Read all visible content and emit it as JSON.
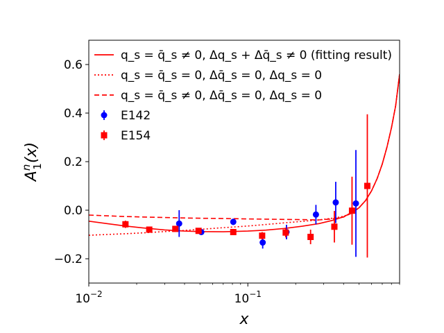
{
  "chart_data": {
    "type": "scatter",
    "title": "",
    "xlabel": "x",
    "ylabel": "A_1^n(x)",
    "xscale": "log",
    "xlim": [
      0.01,
      0.9
    ],
    "ylim": [
      -0.3,
      0.7
    ],
    "grid": false,
    "legend_position": "upper-left",
    "x_ticks": [
      {
        "value": 0.01,
        "base": "10",
        "exp": "−2"
      },
      {
        "value": 0.1,
        "base": "10",
        "exp": "−1"
      }
    ],
    "y_ticks": [
      {
        "value": -0.2,
        "label": "−0.2"
      },
      {
        "value": 0.0,
        "label": "0.0"
      },
      {
        "value": 0.2,
        "label": "0.2"
      },
      {
        "value": 0.4,
        "label": "0.4"
      },
      {
        "value": 0.6,
        "label": "0.6"
      }
    ],
    "curves": [
      {
        "name": "fitting-result",
        "label": "q_s = q̄_s ≠ 0, Δq_s + Δq̄_s ≠ 0 (fitting result)",
        "style": "solid",
        "x": [
          0.01,
          0.013,
          0.017,
          0.022,
          0.03,
          0.04,
          0.05,
          0.07,
          0.1,
          0.13,
          0.17,
          0.22,
          0.28,
          0.34,
          0.4,
          0.45,
          0.5,
          0.55,
          0.6,
          0.65,
          0.7,
          0.75,
          0.8,
          0.85,
          0.9
        ],
        "y": [
          -0.045,
          -0.055,
          -0.065,
          -0.073,
          -0.081,
          -0.086,
          -0.088,
          -0.089,
          -0.086,
          -0.082,
          -0.075,
          -0.066,
          -0.055,
          -0.042,
          -0.027,
          -0.01,
          0.01,
          0.04,
          0.08,
          0.13,
          0.19,
          0.26,
          0.34,
          0.43,
          0.56
        ]
      },
      {
        "name": "zero-strange",
        "label": "q_s = q̄_s = 0, Δq̄_s = 0, Δq_s = 0",
        "style": "dotted",
        "x": [
          0.01,
          0.013,
          0.017,
          0.022,
          0.03,
          0.04,
          0.05,
          0.07,
          0.1,
          0.13,
          0.17,
          0.22,
          0.28,
          0.34,
          0.4,
          0.45,
          0.5,
          0.55,
          0.6,
          0.65,
          0.7,
          0.75,
          0.8,
          0.85,
          0.9
        ],
        "y": [
          -0.103,
          -0.1,
          -0.097,
          -0.093,
          -0.088,
          -0.083,
          -0.079,
          -0.072,
          -0.065,
          -0.059,
          -0.052,
          -0.046,
          -0.04,
          -0.033,
          -0.025,
          -0.01,
          0.01,
          0.04,
          0.08,
          0.13,
          0.19,
          0.26,
          0.34,
          0.43,
          0.56
        ]
      },
      {
        "name": "no-polarized-strange",
        "label": "q_s = q̄_s ≠ 0, Δq̄_s = 0, Δq_s = 0",
        "style": "dashed",
        "x": [
          0.01,
          0.013,
          0.017,
          0.022,
          0.03,
          0.04,
          0.05,
          0.07,
          0.1,
          0.13,
          0.17,
          0.22,
          0.28,
          0.34,
          0.4,
          0.45,
          0.5,
          0.55,
          0.6,
          0.65,
          0.7,
          0.75,
          0.8,
          0.85,
          0.9
        ],
        "y": [
          -0.02,
          -0.023,
          -0.026,
          -0.028,
          -0.03,
          -0.032,
          -0.033,
          -0.034,
          -0.036,
          -0.037,
          -0.038,
          -0.039,
          -0.04,
          -0.036,
          -0.028,
          -0.012,
          0.01,
          0.04,
          0.08,
          0.13,
          0.19,
          0.26,
          0.34,
          0.43,
          0.56
        ]
      }
    ],
    "series": [
      {
        "name": "E142",
        "label": "E142",
        "marker": "circle",
        "points": [
          {
            "x": 0.037,
            "y": -0.055,
            "err": 0.055
          },
          {
            "x": 0.051,
            "y": -0.09,
            "err": 0.01
          },
          {
            "x": 0.081,
            "y": -0.048,
            "err": 0.013
          },
          {
            "x": 0.124,
            "y": -0.133,
            "err": 0.025
          },
          {
            "x": 0.175,
            "y": -0.09,
            "err": 0.03
          },
          {
            "x": 0.268,
            "y": -0.018,
            "err": 0.04
          },
          {
            "x": 0.357,
            "y": 0.032,
            "err": 0.085
          },
          {
            "x": 0.478,
            "y": 0.028,
            "err": 0.22
          }
        ]
      },
      {
        "name": "E154",
        "label": "E154",
        "marker": "square",
        "points": [
          {
            "x": 0.017,
            "y": -0.058,
            "err": 0.015
          },
          {
            "x": 0.024,
            "y": -0.08,
            "err": 0.01
          },
          {
            "x": 0.035,
            "y": -0.077,
            "err": 0.01
          },
          {
            "x": 0.049,
            "y": -0.085,
            "err": 0.01
          },
          {
            "x": 0.081,
            "y": -0.09,
            "err": 0.01
          },
          {
            "x": 0.123,
            "y": -0.105,
            "err": 0.015
          },
          {
            "x": 0.173,
            "y": -0.092,
            "err": 0.02
          },
          {
            "x": 0.248,
            "y": -0.11,
            "err": 0.03
          },
          {
            "x": 0.35,
            "y": -0.068,
            "err": 0.065
          },
          {
            "x": 0.452,
            "y": -0.002,
            "err": 0.14
          },
          {
            "x": 0.564,
            "y": 0.1,
            "err": 0.295
          }
        ]
      }
    ],
    "colors": {
      "curve": "#ff0000",
      "E142": "#0000ff",
      "E154": "#ff0000",
      "axis": "#000000",
      "background": "#ffffff"
    }
  }
}
